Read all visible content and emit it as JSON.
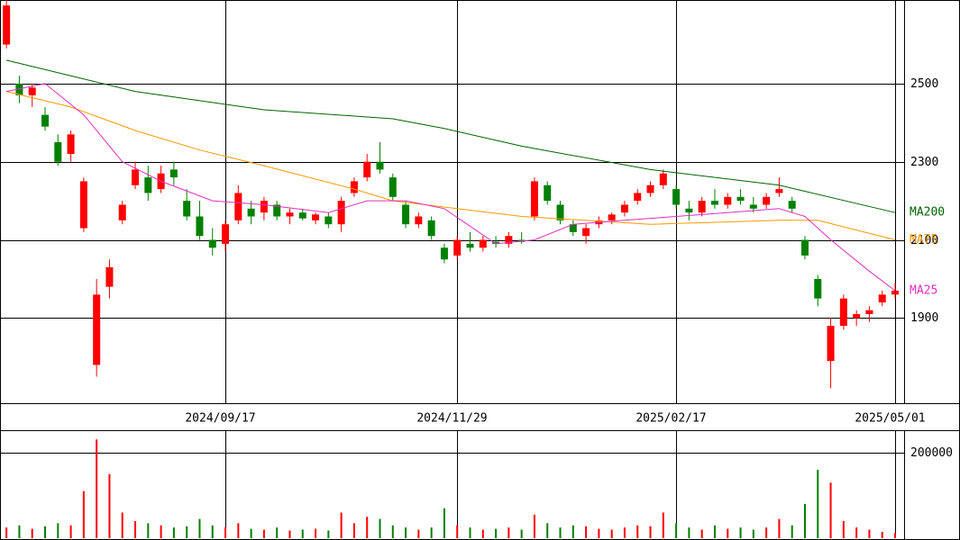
{
  "chart_data": {
    "type": "candlestick",
    "up_color": "#ff0000",
    "down_color": "#008000",
    "xlim": [
      -0.5,
      69.7
    ],
    "ylim": [
      1682,
      2714
    ],
    "yticks": [
      1900,
      2100,
      2300,
      2500
    ],
    "xticks": [
      {
        "value": 17,
        "label": "2024/09/17"
      },
      {
        "value": 35,
        "label": "2024/11/29"
      },
      {
        "value": 52,
        "label": "2025/02/17"
      },
      {
        "value": 69,
        "label": "2025/05/01"
      }
    ],
    "open": [
      2600,
      2500,
      2470,
      2420,
      2350,
      2320,
      2130,
      1780,
      1980,
      2150,
      2240,
      2260,
      2230,
      2280,
      2200,
      2160,
      2100,
      2090,
      2150,
      2180,
      2170,
      2190,
      2160,
      2170,
      2150,
      2160,
      2140,
      2220,
      2260,
      2300,
      2260,
      2190,
      2140,
      2150,
      2080,
      2060,
      2090,
      2080,
      2095,
      2090,
      2100,
      2160,
      2240,
      2190,
      2140,
      2110,
      2140,
      2150,
      2170,
      2200,
      2220,
      2240,
      2230,
      2180,
      2170,
      2200,
      2190,
      2210,
      2190,
      2190,
      2220,
      2200,
      2100,
      2000,
      1790,
      1880,
      1900,
      1910,
      1940,
      1960
    ],
    "high": [
      2714,
      2520,
      2500,
      2440,
      2370,
      2380,
      2260,
      2000,
      2050,
      2200,
      2300,
      2290,
      2290,
      2300,
      2230,
      2200,
      2130,
      2150,
      2240,
      2200,
      2210,
      2200,
      2180,
      2180,
      2170,
      2170,
      2210,
      2260,
      2320,
      2350,
      2270,
      2200,
      2170,
      2160,
      2090,
      2110,
      2120,
      2110,
      2110,
      2120,
      2120,
      2260,
      2250,
      2200,
      2150,
      2140,
      2160,
      2170,
      2200,
      2230,
      2250,
      2280,
      2240,
      2200,
      2210,
      2230,
      2220,
      2230,
      2210,
      2220,
      2260,
      2210,
      2110,
      2010,
      1900,
      1960,
      1920,
      1930,
      1970,
      1990
    ],
    "low": [
      2590,
      2450,
      2440,
      2380,
      2290,
      2300,
      2120,
      1750,
      1950,
      2140,
      2230,
      2200,
      2220,
      2240,
      2150,
      2100,
      2060,
      2070,
      2140,
      2140,
      2150,
      2150,
      2140,
      2150,
      2140,
      2130,
      2120,
      2210,
      2250,
      2270,
      2200,
      2130,
      2130,
      2100,
      2040,
      2050,
      2070,
      2070,
      2080,
      2080,
      2090,
      2150,
      2190,
      2140,
      2110,
      2090,
      2130,
      2140,
      2160,
      2190,
      2210,
      2230,
      2180,
      2150,
      2160,
      2180,
      2180,
      2190,
      2170,
      2180,
      2210,
      2170,
      2050,
      1930,
      1720,
      1870,
      1880,
      1890,
      1930,
      1950
    ],
    "close": [
      2700,
      2470,
      2490,
      2390,
      2300,
      2370,
      2250,
      1960,
      2030,
      2190,
      2280,
      2220,
      2270,
      2260,
      2160,
      2110,
      2080,
      2140,
      2220,
      2160,
      2200,
      2160,
      2170,
      2155,
      2165,
      2140,
      2200,
      2250,
      2300,
      2280,
      2210,
      2140,
      2160,
      2110,
      2050,
      2100,
      2080,
      2100,
      2090,
      2110,
      2095,
      2250,
      2200,
      2150,
      2120,
      2130,
      2150,
      2165,
      2190,
      2220,
      2240,
      2270,
      2190,
      2170,
      2200,
      2190,
      2210,
      2200,
      2180,
      2210,
      2230,
      2180,
      2060,
      1950,
      1880,
      1950,
      1910,
      1920,
      1960,
      1970
    ],
    "series": [
      {
        "name": "MA200",
        "color": "#006400",
        "x": [
          0,
          10,
          20,
          30,
          34,
          40,
          50,
          60,
          69
        ],
        "values": [
          2560,
          2480,
          2433,
          2410,
          2385,
          2340,
          2280,
          2240,
          2170
        ]
      },
      {
        "name": "MA75",
        "color": "#ff9900",
        "x": [
          0,
          5,
          10,
          15,
          20,
          27,
          30,
          40,
          50,
          60,
          63,
          69
        ],
        "values": [
          2480,
          2440,
          2380,
          2330,
          2290,
          2230,
          2200,
          2160,
          2140,
          2150,
          2150,
          2100
        ]
      },
      {
        "name": "MA25",
        "color": "#e030c0",
        "x": [
          0,
          3,
          6,
          9,
          12,
          16,
          20,
          25,
          28,
          31,
          34,
          38,
          41,
          44,
          48,
          52,
          56,
          60,
          62,
          64,
          67,
          69
        ],
        "values": [
          2480,
          2500,
          2420,
          2300,
          2250,
          2200,
          2190,
          2170,
          2200,
          2200,
          2180,
          2090,
          2100,
          2140,
          2150,
          2160,
          2170,
          2180,
          2160,
          2100,
          2020,
          1970
        ]
      }
    ],
    "volume": {
      "ylim": [
        0,
        252600
      ],
      "yticks": [
        200000
      ],
      "values": [
        25000,
        30000,
        22000,
        28000,
        35000,
        30000,
        110000,
        231000,
        150000,
        60000,
        40000,
        35000,
        30000,
        25000,
        28000,
        45000,
        30000,
        25000,
        35000,
        22000,
        20000,
        25000,
        18000,
        20000,
        22000,
        18000,
        60000,
        35000,
        50000,
        45000,
        30000,
        25000,
        20000,
        25000,
        70000,
        30000,
        25000,
        20000,
        22000,
        25000,
        20000,
        55000,
        35000,
        25000,
        30000,
        28000,
        22000,
        20000,
        25000,
        30000,
        28000,
        60000,
        35000,
        25000,
        20000,
        30000,
        22000,
        25000,
        20000,
        25000,
        45000,
        30000,
        80000,
        160000,
        130000,
        40000,
        25000,
        20000,
        15000,
        12000
      ]
    }
  }
}
